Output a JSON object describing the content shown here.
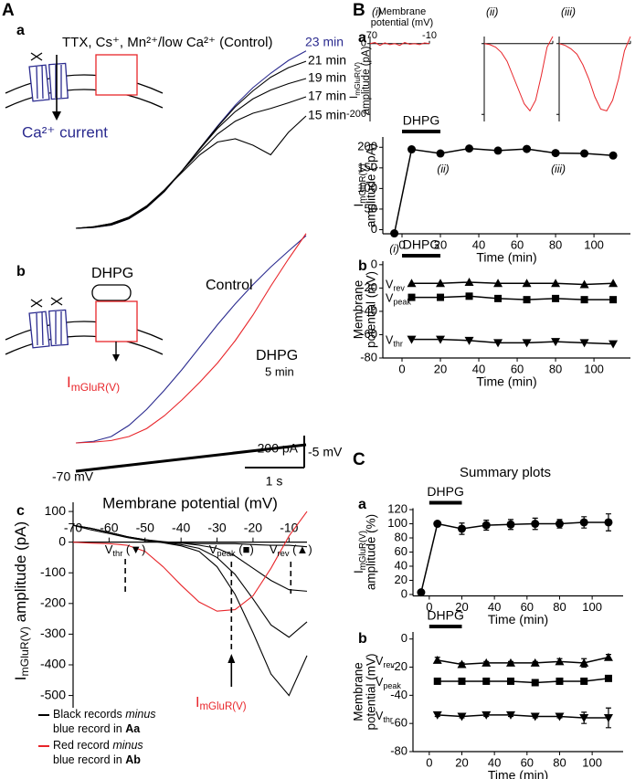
{
  "labels": {
    "A": "A",
    "Aa": "a",
    "Ab": "b",
    "Ac": "c",
    "B": "B",
    "Ba": "a",
    "Bb": "b",
    "C": "C",
    "Ca": "a",
    "Cb": "b"
  },
  "diagram": {
    "ca_current": "Ca²⁺ current",
    "drug": "DHPG",
    "current": {
      "base": "I",
      "sub": "mGluR(V)"
    }
  },
  "summary_title": "Summary plots",
  "chart_data": [
    {
      "type": "line",
      "title": "TTX, Cs⁺, Mn²⁺/low Ca²⁺ (Control)",
      "x": [
        -70,
        -65,
        -60,
        -55,
        -50,
        -45,
        -40,
        -35,
        -30,
        -25,
        -20,
        -15,
        -10,
        -5
      ],
      "series": [
        {
          "name": "23 min",
          "color": "#2b2b8f",
          "values": [
            0,
            5,
            20,
            60,
            130,
            230,
            360,
            500,
            640,
            770,
            880,
            970,
            1050,
            1110
          ]
        },
        {
          "name": "21 min",
          "color": "#000000",
          "values": [
            0,
            5,
            20,
            60,
            130,
            230,
            360,
            500,
            635,
            760,
            860,
            945,
            1005,
            1045
          ]
        },
        {
          "name": "19 min",
          "color": "#000000",
          "values": [
            0,
            8,
            25,
            65,
            135,
            235,
            360,
            495,
            625,
            730,
            810,
            865,
            905,
            937
          ]
        },
        {
          "name": "17 min",
          "color": "#000000",
          "values": [
            0,
            10,
            30,
            70,
            140,
            240,
            360,
            480,
            590,
            670,
            720,
            750,
            785,
            823
          ]
        },
        {
          "name": "15 min",
          "color": "#000000",
          "values": [
            0,
            10,
            30,
            70,
            140,
            240,
            350,
            460,
            540,
            560,
            520,
            460,
            600,
            703
          ]
        }
      ]
    },
    {
      "type": "line",
      "annotation": "5 min",
      "x": [
        -70,
        -65,
        -60,
        -55,
        -50,
        -45,
        -40,
        -35,
        -30,
        -25,
        -20,
        -15,
        -10,
        -5
      ],
      "series": [
        {
          "name": "Control",
          "color": "#2b2b8f",
          "values": [
            0,
            10,
            40,
            110,
            210,
            330,
            460,
            600,
            740,
            870,
            990,
            1100,
            1200,
            1297
          ]
        },
        {
          "name": "DHPG",
          "color": "#e8252a",
          "values": [
            0,
            5,
            15,
            40,
            90,
            170,
            270,
            380,
            500,
            640,
            800,
            980,
            1150,
            1310
          ]
        }
      ],
      "scale_bar": {
        "value": 200,
        "label": "200 pA"
      },
      "time_bar": {
        "value": 1,
        "label": "1 s"
      },
      "ramp": [
        {
          "value": -70,
          "label": "-70 mV"
        },
        {
          "value": -5,
          "label": "-5 mV"
        }
      ]
    },
    {
      "type": "line",
      "xlabel": "Membrane potential (mV)",
      "ylabel": {
        "base": "I",
        "sub": "mGluR(V)",
        "rest": " amplitude (pA)"
      },
      "xlim": [
        -70,
        -5
      ],
      "xticks": [
        -70,
        -60,
        -50,
        -40,
        -30,
        -20,
        -10
      ],
      "ylim": [
        -540,
        130
      ],
      "yticks": [
        100,
        0,
        -100,
        -200,
        -300,
        -400,
        -500
      ],
      "x": [
        -70,
        -65,
        -60,
        -55,
        -50,
        -45,
        -40,
        -35,
        -30,
        -25,
        -20,
        -15,
        -10,
        -5
      ],
      "series": [
        {
          "color": "#000000",
          "values": [
            55,
            40,
            28,
            15,
            5,
            0,
            -3,
            -5,
            -5,
            -5,
            -8,
            -10,
            -10,
            -15
          ]
        },
        {
          "color": "#000000",
          "values": [
            55,
            45,
            32,
            18,
            8,
            2,
            -3,
            -10,
            -20,
            -45,
            -85,
            -125,
            -155,
            -160
          ]
        },
        {
          "color": "#000000",
          "values": [
            55,
            45,
            32,
            18,
            8,
            0,
            -8,
            -20,
            -50,
            -105,
            -185,
            -270,
            -310,
            -260
          ]
        },
        {
          "color": "#000000",
          "values": [
            55,
            45,
            32,
            18,
            6,
            -2,
            -12,
            -30,
            -80,
            -170,
            -295,
            -430,
            -500,
            -370
          ]
        },
        {
          "color": "#e8252a",
          "values": [
            0,
            -3,
            -5,
            -10,
            -30,
            -80,
            -140,
            -195,
            -225,
            -220,
            -175,
            -85,
            20,
            100
          ]
        }
      ],
      "markers": [
        {
          "label": {
            "base": "V",
            "sub": "thr",
            "rest": " (▼)"
          },
          "x": -55.5
        },
        {
          "label": {
            "base": "V",
            "sub": "peak",
            "rest": " (■)"
          },
          "x": -26
        },
        {
          "label": {
            "base": "V",
            "sub": "rev",
            "rest": " (▲)"
          },
          "x": -9.5
        }
      ],
      "arrow_label": {
        "base": "I",
        "sub": "mGluR(V)"
      },
      "legend": [
        {
          "color": "#000000",
          "parts": [
            "Black records ",
            "minus",
            "blue record in ",
            "Aa"
          ]
        },
        {
          "color": "#e8252a",
          "parts": [
            "Red record ",
            "minus",
            "blue record in ",
            "Ab"
          ]
        }
      ]
    },
    {
      "type": "line",
      "title_lines": [
        "Membrane",
        "potential (mV)"
      ],
      "ylabel": [
        {
          "base": "I",
          "sub": "mGluR(V)"
        },
        "amplitude (pA)"
      ],
      "x": [
        -70,
        -65,
        -60,
        -55,
        -50,
        -45,
        -40,
        -35,
        -30,
        -25,
        -20,
        -15,
        -10
      ],
      "xticks": [
        -70,
        -10
      ],
      "ylim": [
        -220,
        20
      ],
      "yticks": [
        0,
        -200
      ],
      "series": [
        {
          "name": "(i)",
          "color": "#e8252a",
          "values": [
            0,
            3,
            -5,
            2,
            -3,
            0,
            -5,
            3,
            -2,
            0,
            -3,
            2,
            0
          ]
        },
        {
          "name": "(ii)",
          "color": "#e8252a",
          "values": [
            0,
            -3,
            -10,
            -25,
            -50,
            -90,
            -130,
            -170,
            -190,
            -160,
            -90,
            -10,
            20
          ]
        },
        {
          "name": "(iii)",
          "color": "#e8252a",
          "values": [
            0,
            -5,
            -15,
            -30,
            -60,
            -100,
            -150,
            -185,
            -190,
            -160,
            -100,
            -20,
            20
          ]
        }
      ]
    },
    {
      "type": "scatter-line",
      "ylabel": [
        {
          "base": "I",
          "sub": "mGluR(V)"
        },
        "amplitude (-pA)"
      ],
      "xlabel": "Time (min)",
      "drug": {
        "label": "DHPG",
        "period": [
          0,
          20
        ]
      },
      "xlim": [
        -10,
        119
      ],
      "xticks": [
        0,
        20,
        40,
        60,
        80,
        100
      ],
      "ylim": [
        -10,
        225
      ],
      "yticks": [
        0,
        50,
        100,
        150,
        200
      ],
      "x": [
        -4,
        5,
        20,
        35,
        50,
        65,
        80,
        95,
        110
      ],
      "point_labels": [
        "(i)",
        null,
        "(ii)",
        null,
        null,
        null,
        "(iii)",
        null,
        null
      ],
      "series": [
        {
          "color": "#000000",
          "marker": "circle",
          "values": [
            -9,
            195,
            185,
            197,
            192,
            196,
            186,
            185,
            180
          ]
        }
      ]
    },
    {
      "type": "scatter-line",
      "ylabel": [
        "Membrane",
        "potential (mV)"
      ],
      "xlabel": "Time (min)",
      "drug": {
        "label": "DHPG",
        "period": [
          0,
          20
        ]
      },
      "xlim": [
        -10,
        119
      ],
      "xticks": [
        0,
        20,
        40,
        60,
        80,
        100
      ],
      "ylim": [
        -80,
        3
      ],
      "yticks": [
        0,
        -20,
        -40,
        -60,
        -80
      ],
      "x": [
        5,
        20,
        35,
        50,
        65,
        80,
        95,
        110
      ],
      "series": [
        {
          "name": "Vrev",
          "color": "#000000",
          "marker": "triangle-up",
          "values": [
            -16,
            -16,
            -15,
            -16,
            -16,
            -16,
            -17,
            -16
          ]
        },
        {
          "name": "Vpeak",
          "color": "#000000",
          "marker": "square",
          "values": [
            -28,
            -28,
            -27,
            -29,
            -30,
            -29,
            -30,
            -30
          ]
        },
        {
          "name": "Vthr",
          "color": "#000000",
          "marker": "triangle-down",
          "values": [
            -64,
            -64,
            -65,
            -67,
            -67,
            -66,
            -67,
            -68
          ]
        }
      ]
    },
    {
      "type": "scatter-line",
      "ylabel": [
        {
          "base": "I",
          "sub": "mGluR(V)"
        },
        "amplitude (%)"
      ],
      "xlabel": "Time (min)",
      "drug": {
        "label": "DHPG",
        "period": [
          0,
          20
        ]
      },
      "xlim": [
        -10,
        119
      ],
      "xticks": [
        0,
        20,
        40,
        60,
        80,
        100
      ],
      "ylim": [
        -2,
        122
      ],
      "yticks": [
        0,
        20,
        40,
        60,
        80,
        100,
        120
      ],
      "x": [
        -5,
        5,
        20,
        35,
        50,
        65,
        80,
        95,
        110
      ],
      "series": [
        {
          "color": "#000000",
          "marker": "circle",
          "values": [
            3,
            100,
            93,
            98,
            99,
            100,
            100,
            102,
            102
          ],
          "errors": [
            0,
            0,
            8,
            7,
            7,
            8,
            6,
            8,
            12
          ]
        }
      ]
    },
    {
      "type": "scatter-line",
      "ylabel": [
        "Membrane",
        "potential (mV)"
      ],
      "xlabel": "Time (min)",
      "drug": {
        "label": "DHPG",
        "period": [
          0,
          20
        ]
      },
      "xlim": [
        -10,
        119
      ],
      "xticks": [
        0,
        20,
        40,
        60,
        80,
        100
      ],
      "ylim": [
        -80,
        5
      ],
      "yticks": [
        0,
        -20,
        -40,
        -60,
        -80
      ],
      "x": [
        5,
        20,
        35,
        50,
        65,
        80,
        95,
        110
      ],
      "series": [
        {
          "name": "Vrev",
          "color": "#000000",
          "marker": "triangle-up",
          "values": [
            -15,
            -18,
            -17,
            -17,
            -17,
            -16,
            -17,
            -13
          ],
          "errors": [
            2,
            1,
            1,
            1,
            1,
            2,
            3,
            2
          ]
        },
        {
          "name": "Vpeak",
          "color": "#000000",
          "marker": "square",
          "values": [
            -30,
            -30,
            -30,
            -30,
            -31,
            -30,
            -30,
            -28
          ],
          "errors": [
            1,
            1,
            1,
            1,
            1,
            1,
            1,
            1
          ]
        },
        {
          "name": "Vthr",
          "color": "#000000",
          "marker": "triangle-down",
          "values": [
            -54,
            -55,
            -54,
            -54,
            -55,
            -55,
            -56,
            -56
          ],
          "errors": [
            1,
            1,
            1,
            1,
            1,
            1,
            4,
            7
          ]
        }
      ]
    }
  ]
}
